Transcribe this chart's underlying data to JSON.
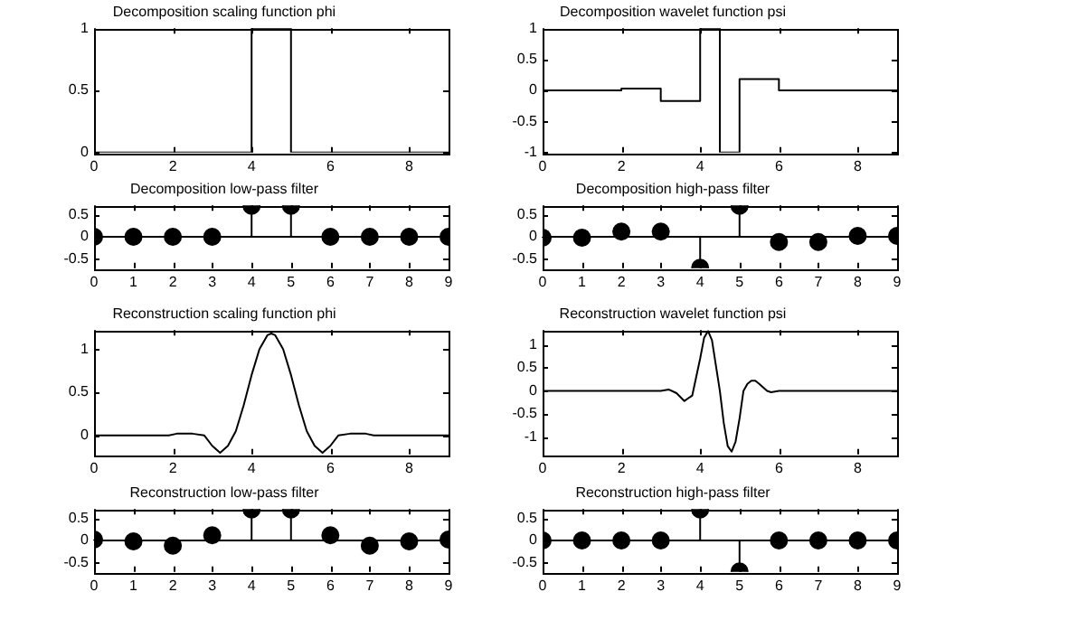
{
  "chart_data": [
    {
      "type": "line",
      "title": "Decomposition scaling function phi",
      "color": "#000000",
      "x": [
        0,
        4,
        4,
        5,
        5,
        9
      ],
      "values": [
        0,
        0,
        1,
        1,
        0,
        0
      ],
      "xlim": [
        0,
        9
      ],
      "xticks": [
        0,
        2,
        4,
        6,
        8
      ],
      "ylim": [
        0,
        1
      ],
      "yticks": [
        0,
        0.5,
        1
      ],
      "grid": false
    },
    {
      "type": "line",
      "title": "Decomposition wavelet function psi",
      "color": "#000000",
      "x": [
        0,
        2,
        2,
        3,
        3,
        4,
        4,
        4.5,
        4.5,
        5,
        5,
        6,
        6,
        9
      ],
      "values": [
        0,
        0,
        0.03,
        0.03,
        -0.17,
        -0.17,
        1,
        1,
        -1,
        -1,
        0.18,
        0.18,
        0,
        0
      ],
      "xlim": [
        0,
        9
      ],
      "xticks": [
        0,
        2,
        4,
        6,
        8
      ],
      "ylim": [
        -1,
        1
      ],
      "yticks": [
        -1,
        -0.5,
        0,
        0.5,
        1
      ],
      "grid": false
    },
    {
      "type": "lollipop",
      "title": "Decomposition low-pass filter",
      "color": "#000000",
      "marker": "circle",
      "x": [
        0,
        1,
        2,
        3,
        4,
        5,
        6,
        7,
        8,
        9
      ],
      "values": [
        0,
        0,
        0,
        0,
        0.71,
        0.71,
        0,
        0,
        0,
        0
      ],
      "ref_lines": [
        {
          "axis": "y",
          "value": 0,
          "color": "#000000"
        }
      ],
      "xlim": [
        0,
        9
      ],
      "xticks": [
        0,
        1,
        2,
        3,
        4,
        5,
        6,
        7,
        8,
        9
      ],
      "ylim": [
        -0.72,
        0.72
      ],
      "yticks": [
        -0.5,
        0,
        0.5
      ],
      "grid": false
    },
    {
      "type": "lollipop",
      "title": "Decomposition high-pass filter",
      "color": "#000000",
      "marker": "circle",
      "x": [
        0,
        1,
        2,
        3,
        4,
        5,
        6,
        7,
        8,
        9
      ],
      "values": [
        -0.02,
        -0.02,
        0.12,
        0.12,
        -0.71,
        0.71,
        -0.12,
        -0.12,
        0.02,
        0.02
      ],
      "ref_lines": [
        {
          "axis": "y",
          "value": 0,
          "color": "#000000"
        }
      ],
      "xlim": [
        0,
        9
      ],
      "xticks": [
        0,
        1,
        2,
        3,
        4,
        5,
        6,
        7,
        8,
        9
      ],
      "ylim": [
        -0.72,
        0.72
      ],
      "yticks": [
        -0.5,
        0,
        0.5
      ],
      "grid": false
    },
    {
      "type": "line",
      "title": "Reconstruction scaling function phi",
      "color": "#000000",
      "x": [
        0,
        1.9,
        2.1,
        2.5,
        2.8,
        3.0,
        3.2,
        3.4,
        3.6,
        3.8,
        4.0,
        4.2,
        4.4,
        4.5,
        4.6,
        4.8,
        5.0,
        5.2,
        5.4,
        5.6,
        5.8,
        6.0,
        6.2,
        6.5,
        6.9,
        7.1,
        9
      ],
      "values": [
        0,
        0,
        0.02,
        0.02,
        0,
        -0.12,
        -0.2,
        -0.12,
        0.05,
        0.35,
        0.7,
        1.0,
        1.16,
        1.18,
        1.16,
        1.0,
        0.7,
        0.35,
        0.05,
        -0.12,
        -0.2,
        -0.12,
        0,
        0.02,
        0.02,
        0,
        0
      ],
      "xlim": [
        0,
        9
      ],
      "xticks": [
        0,
        2,
        4,
        6,
        8
      ],
      "ylim": [
        -0.22,
        1.22
      ],
      "yticks": [
        0,
        0.5,
        1
      ],
      "grid": false
    },
    {
      "type": "line",
      "title": "Reconstruction wavelet function psi",
      "color": "#000000",
      "x": [
        0,
        3.0,
        3.2,
        3.4,
        3.6,
        3.8,
        4.0,
        4.1,
        4.2,
        4.3,
        4.5,
        4.6,
        4.7,
        4.8,
        4.9,
        5.0,
        5.1,
        5.2,
        5.3,
        5.4,
        5.5,
        5.7,
        5.8,
        6.0,
        9
      ],
      "values": [
        0,
        0,
        0.03,
        -0.05,
        -0.22,
        -0.1,
        0.7,
        1.15,
        1.3,
        1.1,
        0,
        -0.7,
        -1.2,
        -1.32,
        -1.1,
        -0.6,
        0,
        0.15,
        0.22,
        0.22,
        0.15,
        0,
        -0.03,
        0,
        0
      ],
      "xlim": [
        0,
        9
      ],
      "xticks": [
        0,
        2,
        4,
        6,
        8
      ],
      "ylim": [
        -1.38,
        1.32
      ],
      "yticks": [
        -1,
        -0.5,
        0,
        0.5,
        1
      ],
      "grid": false
    },
    {
      "type": "lollipop",
      "title": "Reconstruction low-pass filter",
      "color": "#000000",
      "marker": "circle",
      "x": [
        0,
        1,
        2,
        3,
        4,
        5,
        6,
        7,
        8,
        9
      ],
      "values": [
        0.02,
        -0.02,
        -0.12,
        0.12,
        0.71,
        0.71,
        0.12,
        -0.12,
        -0.02,
        0.02
      ],
      "ref_lines": [
        {
          "axis": "y",
          "value": 0,
          "color": "#000000"
        }
      ],
      "xlim": [
        0,
        9
      ],
      "xticks": [
        0,
        1,
        2,
        3,
        4,
        5,
        6,
        7,
        8,
        9
      ],
      "ylim": [
        -0.72,
        0.72
      ],
      "yticks": [
        -0.5,
        0,
        0.5
      ],
      "grid": false
    },
    {
      "type": "lollipop",
      "title": "Reconstruction high-pass filter",
      "color": "#000000",
      "marker": "circle",
      "x": [
        0,
        1,
        2,
        3,
        4,
        5,
        6,
        7,
        8,
        9
      ],
      "values": [
        0,
        0,
        0,
        0,
        0.71,
        -0.71,
        0,
        0,
        0,
        0
      ],
      "ref_lines": [
        {
          "axis": "y",
          "value": 0,
          "color": "#000000"
        }
      ],
      "xlim": [
        0,
        9
      ],
      "xticks": [
        0,
        1,
        2,
        3,
        4,
        5,
        6,
        7,
        8,
        9
      ],
      "ylim": [
        -0.72,
        0.72
      ],
      "yticks": [
        -0.5,
        0,
        0.5
      ],
      "grid": false
    }
  ]
}
